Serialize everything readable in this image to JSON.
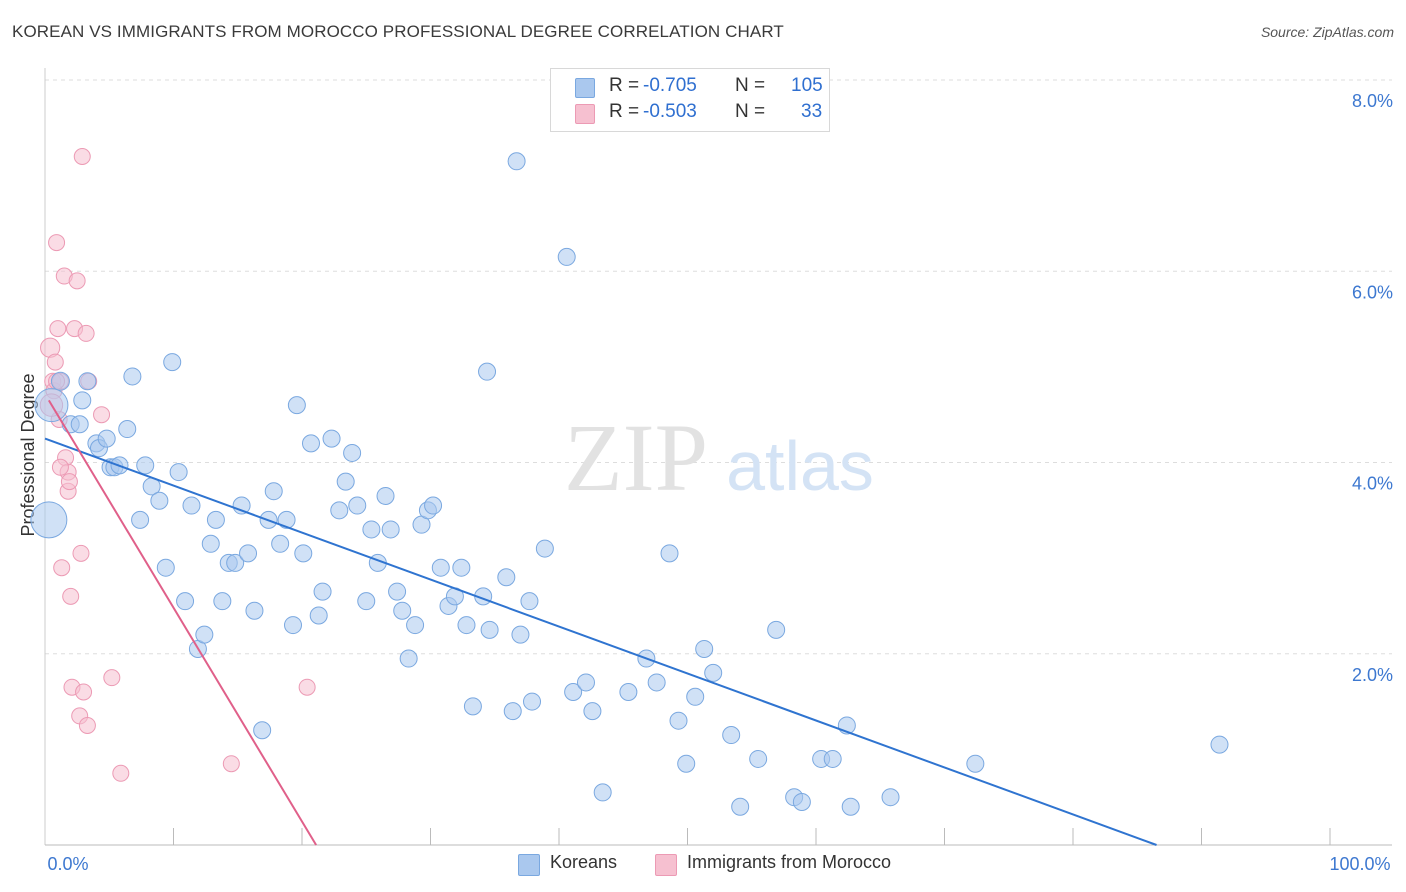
{
  "title": "KOREAN VS IMMIGRANTS FROM MOROCCO PROFESSIONAL DEGREE CORRELATION CHART",
  "source": "Source: ZipAtlas.com",
  "watermark": {
    "zip": "ZIP",
    "atlas": "atlas"
  },
  "legend_top": {
    "rows": [
      {
        "r_label": "R =",
        "r_value": "-0.705",
        "n_label": "N =",
        "n_value": "105"
      },
      {
        "r_label": "R =",
        "r_value": "-0.503",
        "n_label": "N =",
        "n_value": "33"
      }
    ]
  },
  "legend_bottom": {
    "koreans": "Koreans",
    "morocco": "Immigrants from Morocco"
  },
  "colors": {
    "blue_fill": "#aac8ee",
    "blue_stroke": "#7aa8e0",
    "blue_line": "#2f74d0",
    "pink_fill": "#f6c0d0",
    "pink_stroke": "#ec9ab4",
    "pink_line": "#e0608a",
    "tick_text": "#3d78d0",
    "grid": "#dddddd"
  },
  "chart_data": {
    "type": "scatter",
    "title": "KOREAN VS IMMIGRANTS FROM MOROCCO PROFESSIONAL DEGREE CORRELATION CHART",
    "xlabel": "",
    "ylabel": "Professional Degree",
    "xlim": [
      0,
      100
    ],
    "ylim": [
      0,
      8.0
    ],
    "x_tick_labels": [
      "0.0%",
      "100.0%"
    ],
    "y_ticks": [
      2.0,
      4.0,
      6.0,
      8.0
    ],
    "y_tick_labels": [
      "2.0%",
      "4.0%",
      "6.0%",
      "8.0%"
    ],
    "grid": true,
    "legend_position": "top-center",
    "series": [
      {
        "name": "Koreans",
        "color": "#aac8ee",
        "points": [
          [
            0.5,
            4.6,
            22
          ],
          [
            0.3,
            3.4,
            24
          ],
          [
            1.2,
            4.85,
            12
          ],
          [
            2.0,
            4.4,
            10
          ],
          [
            2.7,
            4.4,
            10
          ],
          [
            3.3,
            4.85,
            10
          ],
          [
            2.9,
            4.65,
            10
          ],
          [
            4.0,
            4.2,
            10
          ],
          [
            4.2,
            4.15,
            10
          ],
          [
            4.8,
            4.25,
            10
          ],
          [
            5.1,
            3.95,
            10
          ],
          [
            5.4,
            3.95,
            10
          ],
          [
            5.8,
            3.97,
            10
          ],
          [
            6.4,
            4.35,
            10
          ],
          [
            6.8,
            4.9,
            10
          ],
          [
            7.4,
            3.4,
            10
          ],
          [
            7.8,
            3.97,
            10
          ],
          [
            8.3,
            3.75,
            10
          ],
          [
            8.9,
            3.6,
            10
          ],
          [
            9.4,
            2.9,
            10
          ],
          [
            9.9,
            5.05,
            10
          ],
          [
            10.4,
            3.9,
            10
          ],
          [
            10.9,
            2.55,
            10
          ],
          [
            11.4,
            3.55,
            10
          ],
          [
            11.9,
            2.05,
            10
          ],
          [
            12.4,
            2.2,
            10
          ],
          [
            12.9,
            3.15,
            10
          ],
          [
            13.3,
            3.4,
            10
          ],
          [
            13.8,
            2.55,
            10
          ],
          [
            14.3,
            2.95,
            10
          ],
          [
            14.8,
            2.95,
            10
          ],
          [
            15.3,
            3.55,
            10
          ],
          [
            15.8,
            3.05,
            10
          ],
          [
            16.3,
            2.45,
            10
          ],
          [
            16.9,
            1.2,
            10
          ],
          [
            17.4,
            3.4,
            10
          ],
          [
            17.8,
            3.7,
            10
          ],
          [
            18.3,
            3.15,
            10
          ],
          [
            18.8,
            3.4,
            10
          ],
          [
            19.3,
            2.3,
            10
          ],
          [
            19.6,
            4.6,
            10
          ],
          [
            20.1,
            3.05,
            10
          ],
          [
            20.7,
            4.2,
            10
          ],
          [
            21.3,
            2.4,
            10
          ],
          [
            21.6,
            2.65,
            10
          ],
          [
            22.3,
            4.25,
            10
          ],
          [
            22.9,
            3.5,
            10
          ],
          [
            23.4,
            3.8,
            10
          ],
          [
            23.9,
            4.1,
            10
          ],
          [
            24.3,
            3.55,
            10
          ],
          [
            25.0,
            2.55,
            10
          ],
          [
            25.4,
            3.3,
            10
          ],
          [
            25.9,
            2.95,
            10
          ],
          [
            26.5,
            3.65,
            10
          ],
          [
            26.9,
            3.3,
            10
          ],
          [
            27.4,
            2.65,
            10
          ],
          [
            27.8,
            2.45,
            10
          ],
          [
            28.3,
            1.95,
            10
          ],
          [
            28.8,
            2.3,
            10
          ],
          [
            29.3,
            3.35,
            10
          ],
          [
            29.8,
            3.5,
            10
          ],
          [
            30.2,
            3.55,
            10
          ],
          [
            30.8,
            2.9,
            10
          ],
          [
            31.4,
            2.5,
            10
          ],
          [
            31.9,
            2.6,
            10
          ],
          [
            32.4,
            2.9,
            10
          ],
          [
            32.8,
            2.3,
            10
          ],
          [
            33.3,
            1.45,
            10
          ],
          [
            34.1,
            2.6,
            10
          ],
          [
            34.4,
            4.95,
            10
          ],
          [
            34.6,
            2.25,
            10
          ],
          [
            35.9,
            2.8,
            10
          ],
          [
            36.4,
            1.4,
            10
          ],
          [
            37.0,
            2.2,
            10
          ],
          [
            37.7,
            2.55,
            10
          ],
          [
            37.9,
            1.5,
            10
          ],
          [
            38.9,
            3.1,
            10
          ],
          [
            36.7,
            7.15,
            10
          ],
          [
            40.6,
            6.15,
            10
          ],
          [
            41.1,
            1.6,
            10
          ],
          [
            42.1,
            1.7,
            10
          ],
          [
            42.6,
            1.4,
            10
          ],
          [
            43.4,
            0.55,
            10
          ],
          [
            45.4,
            1.6,
            10
          ],
          [
            46.8,
            1.95,
            10
          ],
          [
            47.6,
            1.7,
            10
          ],
          [
            48.6,
            3.05,
            10
          ],
          [
            49.3,
            1.3,
            10
          ],
          [
            49.9,
            0.85,
            10
          ],
          [
            50.6,
            1.55,
            10
          ],
          [
            51.3,
            2.05,
            10
          ],
          [
            52.0,
            1.8,
            10
          ],
          [
            53.4,
            1.15,
            10
          ],
          [
            54.1,
            0.4,
            10
          ],
          [
            55.5,
            0.9,
            10
          ],
          [
            56.9,
            2.25,
            10
          ],
          [
            58.3,
            0.5,
            10
          ],
          [
            58.9,
            0.45,
            10
          ],
          [
            60.4,
            0.9,
            10
          ],
          [
            61.3,
            0.9,
            10
          ],
          [
            62.4,
            1.25,
            10
          ],
          [
            62.7,
            0.4,
            10
          ],
          [
            65.8,
            0.5,
            10
          ],
          [
            72.4,
            0.85,
            10
          ],
          [
            91.4,
            1.05,
            10
          ]
        ],
        "trendline": [
          [
            0,
            4.25
          ],
          [
            86.5,
            0.0
          ]
        ]
      },
      {
        "name": "Immigrants from Morocco",
        "color": "#f6c0d0",
        "points": [
          [
            0.4,
            5.2,
            12
          ],
          [
            0.6,
            4.85,
            10
          ],
          [
            0.7,
            4.75,
            10
          ],
          [
            0.8,
            5.05,
            10
          ],
          [
            0.9,
            6.3,
            10
          ],
          [
            1.0,
            5.4,
            10
          ],
          [
            1.2,
            4.85,
            10
          ],
          [
            1.1,
            4.45,
            10
          ],
          [
            1.3,
            2.9,
            10
          ],
          [
            1.5,
            5.95,
            10
          ],
          [
            1.6,
            4.05,
            10
          ],
          [
            1.8,
            3.9,
            10
          ],
          [
            1.8,
            3.7,
            10
          ],
          [
            1.9,
            3.8,
            10
          ],
          [
            2.0,
            2.6,
            10
          ],
          [
            2.1,
            1.65,
            10
          ],
          [
            2.3,
            5.4,
            10
          ],
          [
            2.5,
            5.9,
            10
          ],
          [
            2.7,
            1.35,
            10
          ],
          [
            2.8,
            3.05,
            10
          ],
          [
            3.0,
            1.6,
            10
          ],
          [
            2.9,
            7.2,
            10
          ],
          [
            3.2,
            5.35,
            10
          ],
          [
            3.3,
            1.25,
            10
          ],
          [
            3.4,
            4.85,
            10
          ],
          [
            4.4,
            4.5,
            10
          ],
          [
            5.2,
            1.75,
            10
          ],
          [
            5.9,
            0.75,
            10
          ],
          [
            14.5,
            0.85,
            10
          ],
          [
            20.4,
            1.65,
            10
          ],
          [
            0.5,
            4.6,
            14
          ],
          [
            1.2,
            3.95,
            10
          ],
          [
            0.9,
            4.85,
            10
          ]
        ],
        "trendline": [
          [
            0.3,
            4.65
          ],
          [
            21.1,
            0.0
          ]
        ]
      }
    ]
  }
}
